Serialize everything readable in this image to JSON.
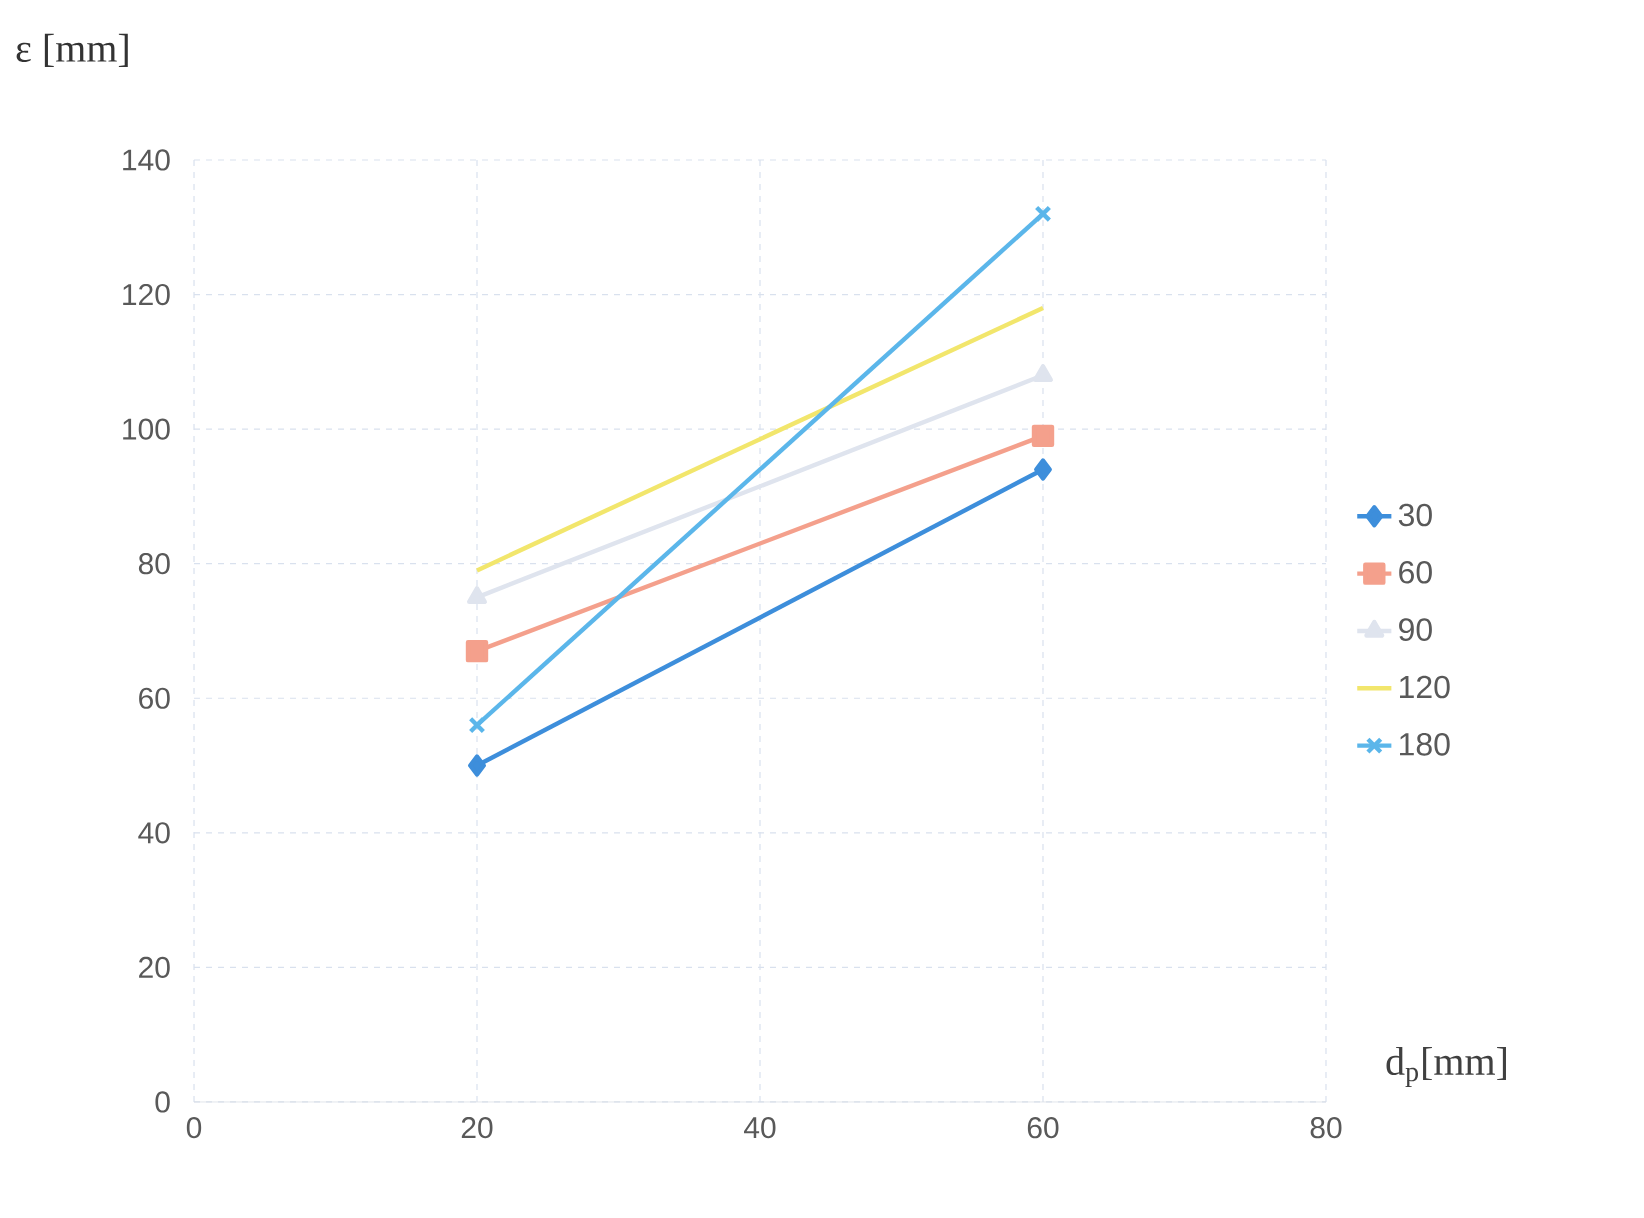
{
  "chart_data": {
    "type": "line",
    "xlabel": "d$_{p}$[mm]",
    "ylabel": "ε [mm]",
    "x": [
      20,
      60
    ],
    "series": [
      {
        "name": "30",
        "color": "#3d8edb",
        "values": [
          50,
          94
        ],
        "marker": "diamond"
      },
      {
        "name": "60",
        "color": "#f4a08c",
        "values": [
          67,
          99
        ],
        "marker": "square"
      },
      {
        "name": "90",
        "color": "#dfe4ee",
        "values": [
          75,
          108
        ],
        "marker": "triangle"
      },
      {
        "name": "120",
        "color": "#f2e66c",
        "values": [
          79,
          118
        ],
        "marker": "none"
      },
      {
        "name": "180",
        "color": "#5bb6ea",
        "values": [
          56,
          132
        ],
        "marker": "cross"
      }
    ],
    "xlim": [
      0,
      80
    ],
    "xticks": [
      0,
      20,
      40,
      60,
      80
    ],
    "ylim": [
      0,
      140
    ],
    "yticks": [
      0,
      20,
      40,
      60,
      80,
      100,
      120,
      140
    ],
    "grid": true,
    "legend": "right",
    "line_style": "solid"
  }
}
